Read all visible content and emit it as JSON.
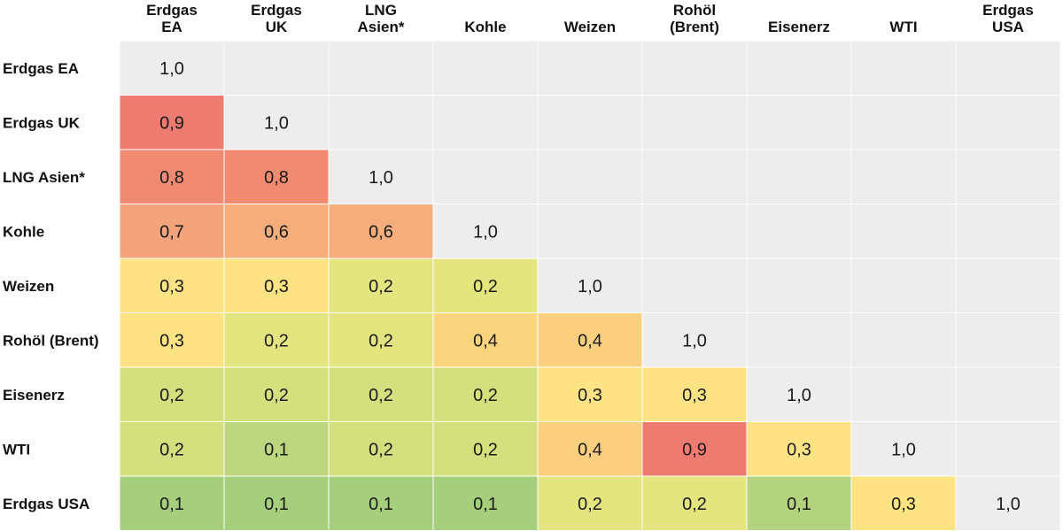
{
  "chart_data": {
    "type": "heatmap",
    "columns": [
      "Erdgas EA",
      "Erdgas UK",
      "LNG Asien*",
      "Kohle",
      "Weizen",
      "Rohöl (Brent)",
      "Eisenerz",
      "WTI",
      "Erdgas USA"
    ],
    "column_label_lines": [
      [
        "Erdgas",
        "EA"
      ],
      [
        "Erdgas",
        "UK"
      ],
      [
        "LNG",
        "Asien*"
      ],
      [
        "Kohle"
      ],
      [
        "Weizen"
      ],
      [
        "Rohöl",
        "(Brent)"
      ],
      [
        "Eisenerz"
      ],
      [
        "WTI"
      ],
      [
        "Erdgas",
        "USA"
      ]
    ],
    "rows": [
      "Erdgas EA",
      "Erdgas UK",
      "LNG Asien*",
      "Kohle",
      "Weizen",
      "Rohöl (Brent)",
      "Eisenerz",
      "WTI",
      "Erdgas USA"
    ],
    "values": [
      [
        1.0,
        null,
        null,
        null,
        null,
        null,
        null,
        null,
        null
      ],
      [
        0.9,
        1.0,
        null,
        null,
        null,
        null,
        null,
        null,
        null
      ],
      [
        0.8,
        0.8,
        1.0,
        null,
        null,
        null,
        null,
        null,
        null
      ],
      [
        0.7,
        0.6,
        0.6,
        1.0,
        null,
        null,
        null,
        null,
        null
      ],
      [
        0.3,
        0.3,
        0.2,
        0.2,
        1.0,
        null,
        null,
        null,
        null
      ],
      [
        0.3,
        0.2,
        0.2,
        0.4,
        0.4,
        1.0,
        null,
        null,
        null
      ],
      [
        0.2,
        0.2,
        0.2,
        0.2,
        0.3,
        0.3,
        1.0,
        null,
        null
      ],
      [
        0.2,
        0.1,
        0.2,
        0.2,
        0.4,
        0.9,
        0.3,
        1.0,
        null
      ],
      [
        0.1,
        0.1,
        0.1,
        0.1,
        0.2,
        0.2,
        0.1,
        0.3,
        1.0
      ]
    ],
    "labels": [
      [
        "1,0",
        "",
        "",
        "",
        "",
        "",
        "",
        "",
        ""
      ],
      [
        "0,9",
        "1,0",
        "",
        "",
        "",
        "",
        "",
        "",
        ""
      ],
      [
        "0,8",
        "0,8",
        "1,0",
        "",
        "",
        "",
        "",
        "",
        ""
      ],
      [
        "0,7",
        "0,6",
        "0,6",
        "1,0",
        "",
        "",
        "",
        "",
        ""
      ],
      [
        "0,3",
        "0,3",
        "0,2",
        "0,2",
        "1,0",
        "",
        "",
        "",
        ""
      ],
      [
        "0,3",
        "0,2",
        "0,2",
        "0,4",
        "0,4",
        "1,0",
        "",
        "",
        ""
      ],
      [
        "0,2",
        "0,2",
        "0,2",
        "0,2",
        "0,3",
        "0,3",
        "1,0",
        "",
        ""
      ],
      [
        "0,2",
        "0,1",
        "0,2",
        "0,2",
        "0,4",
        "0,9",
        "0,3",
        "1,0",
        ""
      ],
      [
        "0,1",
        "0,1",
        "0,1",
        "0,1",
        "0,2",
        "0,2",
        "0,1",
        "0,3",
        "1,0"
      ]
    ],
    "fills": [
      [
        "#ededed",
        "#ededed",
        "#ededed",
        "#ededed",
        "#ededed",
        "#ededed",
        "#ededed",
        "#ededed",
        "#ededed"
      ],
      [
        "#ee7b70",
        "#ededed",
        "#ededed",
        "#ededed",
        "#ededed",
        "#ededed",
        "#ededed",
        "#ededed",
        "#ededed"
      ],
      [
        "#f08a70",
        "#f08a70",
        "#ededed",
        "#ededed",
        "#ededed",
        "#ededed",
        "#ededed",
        "#ededed",
        "#ededed"
      ],
      [
        "#f3a47a",
        "#f5ad7b",
        "#f5ad7b",
        "#ededed",
        "#ededed",
        "#ededed",
        "#ededed",
        "#ededed",
        "#ededed"
      ],
      [
        "#fde384",
        "#fde384",
        "#e5e580",
        "#e5e580",
        "#ededed",
        "#ededed",
        "#ededed",
        "#ededed",
        "#ededed"
      ],
      [
        "#fde384",
        "#e5e580",
        "#e5e580",
        "#fbd47e",
        "#fbcf7e",
        "#ededed",
        "#ededed",
        "#ededed",
        "#ededed"
      ],
      [
        "#d4e07d",
        "#d4e07d",
        "#d4e07d",
        "#d4e07d",
        "#fde384",
        "#fde384",
        "#ededed",
        "#ededed",
        "#ededed"
      ],
      [
        "#d4e07d",
        "#bcd780",
        "#d4e07d",
        "#d4e07d",
        "#fbcf7e",
        "#ee7b70",
        "#fde384",
        "#ededed",
        "#ededed"
      ],
      [
        "#a6cf7d",
        "#a6cf7d",
        "#a6cf7d",
        "#a6cf7d",
        "#e5e580",
        "#e5e580",
        "#b4d37f",
        "#fde384",
        "#ededed"
      ]
    ],
    "legend": "none",
    "grid": "white cell separators"
  }
}
